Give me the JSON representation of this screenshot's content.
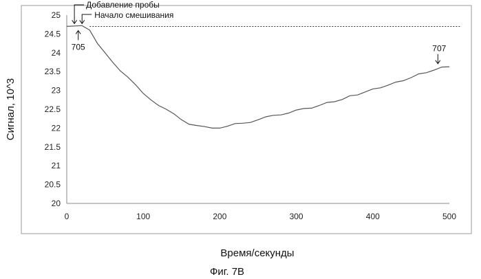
{
  "chart_data": {
    "type": "line",
    "title": "",
    "xlabel": "Время/секунды",
    "ylabel": "Сигнал, 10^3",
    "xlim": [
      0,
      500
    ],
    "ylim": [
      20,
      25
    ],
    "x_ticks": [
      "0",
      "100",
      "200",
      "300",
      "400",
      "500"
    ],
    "y_ticks": [
      "20",
      "20.5",
      "21",
      "21.5",
      "22",
      "22.5",
      "23",
      "23.5",
      "24",
      "24.5",
      "25"
    ],
    "grid": false,
    "legend": "none",
    "series": [
      {
        "line_color": "#555555",
        "x": [
          0,
          20,
          30,
          40,
          50,
          60,
          70,
          80,
          90,
          100,
          110,
          120,
          130,
          140,
          150,
          160,
          170,
          180,
          190,
          200,
          210,
          220,
          230,
          240,
          250,
          260,
          270,
          280,
          290,
          300,
          310,
          320,
          330,
          340,
          350,
          360,
          370,
          380,
          390,
          400,
          410,
          420,
          430,
          440,
          450,
          460,
          470,
          480,
          490,
          500
        ],
        "y": [
          24.7,
          24.72,
          24.6,
          24.25,
          24.0,
          23.75,
          23.52,
          23.35,
          23.15,
          22.92,
          22.75,
          22.6,
          22.5,
          22.38,
          22.22,
          22.1,
          22.07,
          22.04,
          22.0,
          22.0,
          22.05,
          22.12,
          22.13,
          22.15,
          22.22,
          22.3,
          22.34,
          22.35,
          22.4,
          22.48,
          22.52,
          22.53,
          22.6,
          22.68,
          22.7,
          22.76,
          22.86,
          22.88,
          22.96,
          23.04,
          23.07,
          23.14,
          23.22,
          23.26,
          23.34,
          23.44,
          23.47,
          23.54,
          23.62,
          23.63
        ]
      }
    ],
    "reference_line": {
      "y": 24.7,
      "x_start": 30,
      "x_end": 515,
      "style": "dashed"
    },
    "annotations": [
      {
        "id": "probe",
        "text": "Добавление пробы",
        "x": 10,
        "y": 24.7
      },
      {
        "id": "mixing",
        "text": "Начало смешивания",
        "x": 20,
        "y": 24.7
      },
      {
        "id": "p705",
        "text": "705",
        "x": 15,
        "y": 24.7
      },
      {
        "id": "p707",
        "text": "707",
        "x": 485,
        "y": 23.6
      }
    ],
    "caption": "Фиг. 7В"
  }
}
